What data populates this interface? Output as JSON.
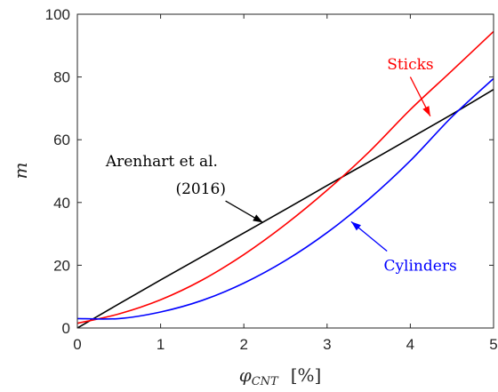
{
  "chart_data": {
    "type": "line",
    "x_range": [
      0,
      5
    ],
    "y_range": [
      0,
      100
    ],
    "x_ticks": [
      0,
      1,
      2,
      3,
      4,
      5
    ],
    "y_ticks": [
      0,
      20,
      40,
      60,
      80,
      100
    ],
    "ylabel": "m",
    "xlabel_symbol": "φ",
    "xlabel_subscript": "CNT",
    "xlabel_unit": "[%]",
    "grid": false,
    "series": [
      {
        "id": "arenhart",
        "color": "#000000",
        "x": [
          0,
          0.5,
          1,
          1.5,
          2,
          2.5,
          3,
          3.5,
          4,
          4.5,
          5
        ],
        "y": [
          0,
          7.7,
          15.3,
          22.8,
          30.3,
          37.8,
          45.4,
          52.9,
          60.5,
          68.1,
          76
        ]
      },
      {
        "id": "sticks",
        "color": "#ff0000",
        "x": [
          0,
          0.5,
          1,
          1.5,
          2,
          2.5,
          3,
          3.5,
          4,
          4.5,
          5
        ],
        "y": [
          1.5,
          4.5,
          9.0,
          15.3,
          23.4,
          33.0,
          43.9,
          56.0,
          69.6,
          82.0,
          94.5
        ]
      },
      {
        "id": "cylinders",
        "color": "#0000ff",
        "x": [
          0,
          0.5,
          1,
          1.5,
          2,
          2.5,
          3,
          3.5,
          4,
          4.5,
          5
        ],
        "y": [
          3,
          3.0,
          5.1,
          8.8,
          14.3,
          21.5,
          30.4,
          41.0,
          53.3,
          67.3,
          79.5
        ]
      }
    ],
    "annotations": [
      {
        "id": "sticks-label",
        "text": "Sticks",
        "color": "#ff0000",
        "text_x": 3.72,
        "text_y": 82.5,
        "anchor": "start",
        "arrow_from": [
          4.0,
          80.0
        ],
        "arrow_to": [
          4.24,
          67.5
        ]
      },
      {
        "id": "arenhart-label-line1",
        "text": "Arenhart et al.",
        "color": "#000000",
        "text_x": 0.34,
        "text_y": 51.5,
        "anchor": "start"
      },
      {
        "id": "arenhart-label-line2",
        "text": "(2016)",
        "color": "#000000",
        "text_x": 1.18,
        "text_y": 42.8,
        "anchor": "start",
        "arrow_from": [
          1.78,
          40.5
        ],
        "arrow_to": [
          2.23,
          33.6
        ]
      },
      {
        "id": "cylinders-label",
        "text": "Cylinders",
        "color": "#0000ff",
        "text_x": 3.68,
        "text_y": 18.3,
        "anchor": "start",
        "arrow_from": [
          3.72,
          24.5
        ],
        "arrow_to": [
          3.29,
          33.9
        ]
      }
    ]
  }
}
